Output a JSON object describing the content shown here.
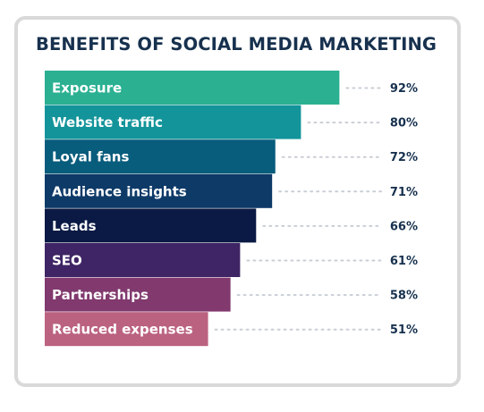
{
  "chart_data": {
    "type": "bar",
    "orientation": "horizontal",
    "title": "BENEFITS OF SOCIAL MEDIA MARKETING",
    "categories": [
      "Exposure",
      "Website traffic",
      "Loyal fans",
      "Audience insights",
      "Leads",
      "SEO",
      "Partnerships",
      "Reduced expenses"
    ],
    "values": [
      92,
      80,
      72,
      71,
      66,
      61,
      58,
      51
    ],
    "value_labels": [
      "92%",
      "80%",
      "72%",
      "71%",
      "66%",
      "61%",
      "58%",
      "51%"
    ],
    "colors": [
      "#2bb092",
      "#13949a",
      "#085c7c",
      "#0e3a68",
      "#0a1a44",
      "#3f2565",
      "#81396e",
      "#bb6280"
    ],
    "grid": false,
    "legend": "none"
  }
}
